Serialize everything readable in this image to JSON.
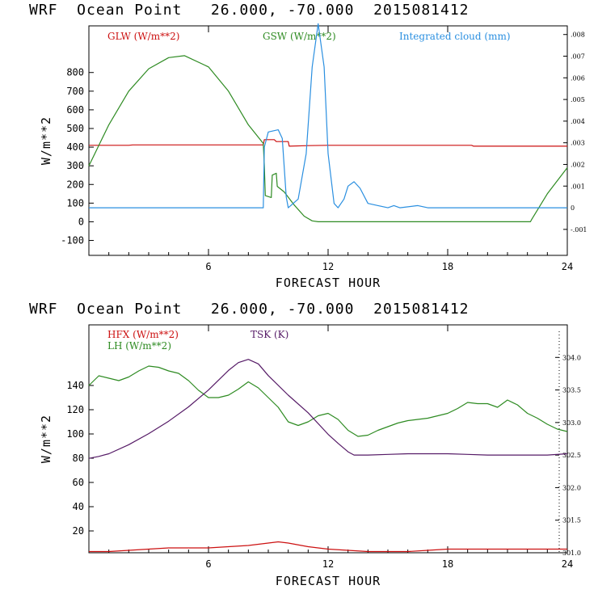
{
  "header": {
    "top": "WRF  Ocean Point   26.000, -70.000  2015081412",
    "bottom": "WRF  Ocean Point   26.000, -70.000  2015081412"
  },
  "colors": {
    "red": "#cc1111",
    "green": "#2e8b22",
    "blue": "#2a8fe0",
    "purple": "#551a66"
  },
  "chart_data": [
    {
      "type": "line",
      "xlabel": "FORECAST HOUR",
      "ylabel": "W/m**2",
      "xlim": [
        0,
        24
      ],
      "ylim": [
        -180,
        1050
      ],
      "xticks": [
        "6",
        "12",
        "18",
        "24"
      ],
      "yticks": [
        "-100",
        "0",
        "100",
        "200",
        "300",
        "400",
        "500",
        "600",
        "700",
        "800"
      ],
      "y2lim": [
        -0.0022,
        0.0084
      ],
      "y2ticks": [
        "-.001",
        "0",
        ".001",
        ".002",
        ".003",
        ".004",
        ".005",
        ".006",
        ".007",
        ".008"
      ],
      "legend": [
        "GLW (W/m**2)",
        "GSW (W/m**2)",
        "Integrated cloud (mm)"
      ],
      "series": [
        {
          "name": "GLW (W/m**2)",
          "color": "red",
          "axis": "left",
          "x": [
            0,
            1,
            2,
            2.2,
            4,
            6,
            7.5,
            8.75,
            8.8,
            9.3,
            9.4,
            9.5,
            10,
            10.05,
            11,
            12,
            14,
            18,
            19.2,
            19.3,
            24
          ],
          "y": [
            410,
            410,
            410,
            412,
            412,
            412,
            412,
            412,
            440,
            440,
            430,
            430,
            430,
            405,
            408,
            410,
            410,
            410,
            410,
            405,
            405
          ]
        },
        {
          "name": "GSW (W/m**2)",
          "color": "green",
          "axis": "left",
          "x": [
            0,
            1,
            2,
            3,
            4,
            4.8,
            6,
            7,
            8,
            8.75,
            8.8,
            8.85,
            9.15,
            9.2,
            9.4,
            9.45,
            9.8,
            10.3,
            10.8,
            11.2,
            11.5,
            22.15,
            22.2,
            23,
            24
          ],
          "y": [
            300,
            520,
            700,
            820,
            880,
            890,
            830,
            700,
            520,
            420,
            300,
            140,
            130,
            250,
            260,
            190,
            160,
            90,
            30,
            5,
            0,
            0,
            10,
            150,
            290
          ]
        },
        {
          "name": "Integrated cloud (mm)",
          "color": "blue",
          "axis": "right",
          "x": [
            0,
            8.75,
            8.8,
            9.0,
            9.5,
            9.7,
            9.9,
            10.0,
            10.5,
            10.9,
            11.2,
            11.5,
            11.8,
            12.0,
            12.3,
            12.5,
            12.8,
            13.0,
            13.3,
            13.6,
            14.0,
            14.5,
            15,
            15.3,
            15.6,
            16.5,
            17,
            24
          ],
          "y": [
            0,
            0,
            0.0028,
            0.0035,
            0.0036,
            0.0032,
            0.0005,
            0,
            0.0004,
            0.0025,
            0.0065,
            0.0085,
            0.0065,
            0.0025,
            0.0002,
            0,
            0.0004,
            0.001,
            0.0012,
            0.0009,
            0.0002,
            0.0001,
            0,
            0.0001,
            0,
            0.0001,
            0,
            0
          ]
        }
      ]
    },
    {
      "type": "line",
      "xlabel": "FORECAST HOUR",
      "ylabel": "W/m**2",
      "xlim": [
        0,
        24
      ],
      "ylim": [
        2,
        190
      ],
      "xticks": [
        "6",
        "12",
        "18",
        "24"
      ],
      "yticks": [
        "20",
        "40",
        "60",
        "80",
        "100",
        "120",
        "140"
      ],
      "y2lim": [
        301.0,
        304.5
      ],
      "y2ticks": [
        "301.0",
        "301.5",
        "302.0",
        "302.5",
        "303.0",
        "303.5",
        "304.0"
      ],
      "legend": [
        "HFX (W/m**2)",
        "LH  (W/m**2)",
        "TSK (K)"
      ],
      "series": [
        {
          "name": "HFX (W/m**2)",
          "color": "red",
          "axis": "left",
          "x": [
            0,
            1,
            2,
            3,
            4,
            5,
            6,
            7,
            8,
            9,
            9.5,
            10,
            11,
            12,
            13,
            14,
            15,
            16,
            17,
            18,
            19,
            20,
            21,
            22,
            23,
            24
          ],
          "y": [
            3,
            3,
            4,
            5,
            6,
            6,
            6,
            7,
            8,
            10,
            11,
            10,
            7,
            5,
            4,
            3,
            3,
            3,
            4,
            5,
            5,
            5,
            5,
            5,
            5,
            5
          ]
        },
        {
          "name": "LH  (W/m**2)",
          "color": "green",
          "axis": "left",
          "x": [
            0,
            0.5,
            1,
            1.5,
            2,
            2.5,
            3,
            3.5,
            4,
            4.5,
            5,
            5.5,
            6,
            6.5,
            7,
            7.5,
            8,
            8.5,
            9,
            9.5,
            10,
            10.5,
            11,
            11.5,
            12,
            12.5,
            13,
            13.5,
            14,
            14.5,
            15,
            15.5,
            16,
            16.5,
            17,
            17.5,
            18,
            18.5,
            19,
            19.5,
            20,
            20.5,
            21,
            21.5,
            22,
            22.5,
            23,
            23.5,
            24
          ],
          "y": [
            140,
            148,
            146,
            144,
            147,
            152,
            156,
            155,
            152,
            150,
            144,
            136,
            130,
            130,
            132,
            137,
            143,
            138,
            130,
            122,
            110,
            107,
            110,
            115,
            117,
            112,
            103,
            98,
            99,
            103,
            106,
            109,
            111,
            112,
            113,
            115,
            117,
            121,
            126,
            125,
            125,
            122,
            128,
            124,
            117,
            113,
            108,
            104,
            102
          ]
        },
        {
          "name": "TSK (K)",
          "color": "purple",
          "axis": "right",
          "x": [
            0,
            0.5,
            1,
            2,
            3,
            4,
            5,
            6,
            7,
            7.5,
            8,
            8.5,
            9,
            10,
            11,
            12,
            12.5,
            13,
            13.3,
            14,
            15,
            16,
            17,
            18,
            19,
            20,
            21,
            22,
            23,
            24
          ],
          "y": [
            302.45,
            302.48,
            302.52,
            302.66,
            302.83,
            303.02,
            303.24,
            303.5,
            303.8,
            303.92,
            303.97,
            303.9,
            303.72,
            303.42,
            303.15,
            302.82,
            302.68,
            302.55,
            302.5,
            302.5,
            302.51,
            302.52,
            302.52,
            302.52,
            302.51,
            302.5,
            302.5,
            302.5,
            302.5,
            302.52
          ]
        }
      ]
    }
  ]
}
